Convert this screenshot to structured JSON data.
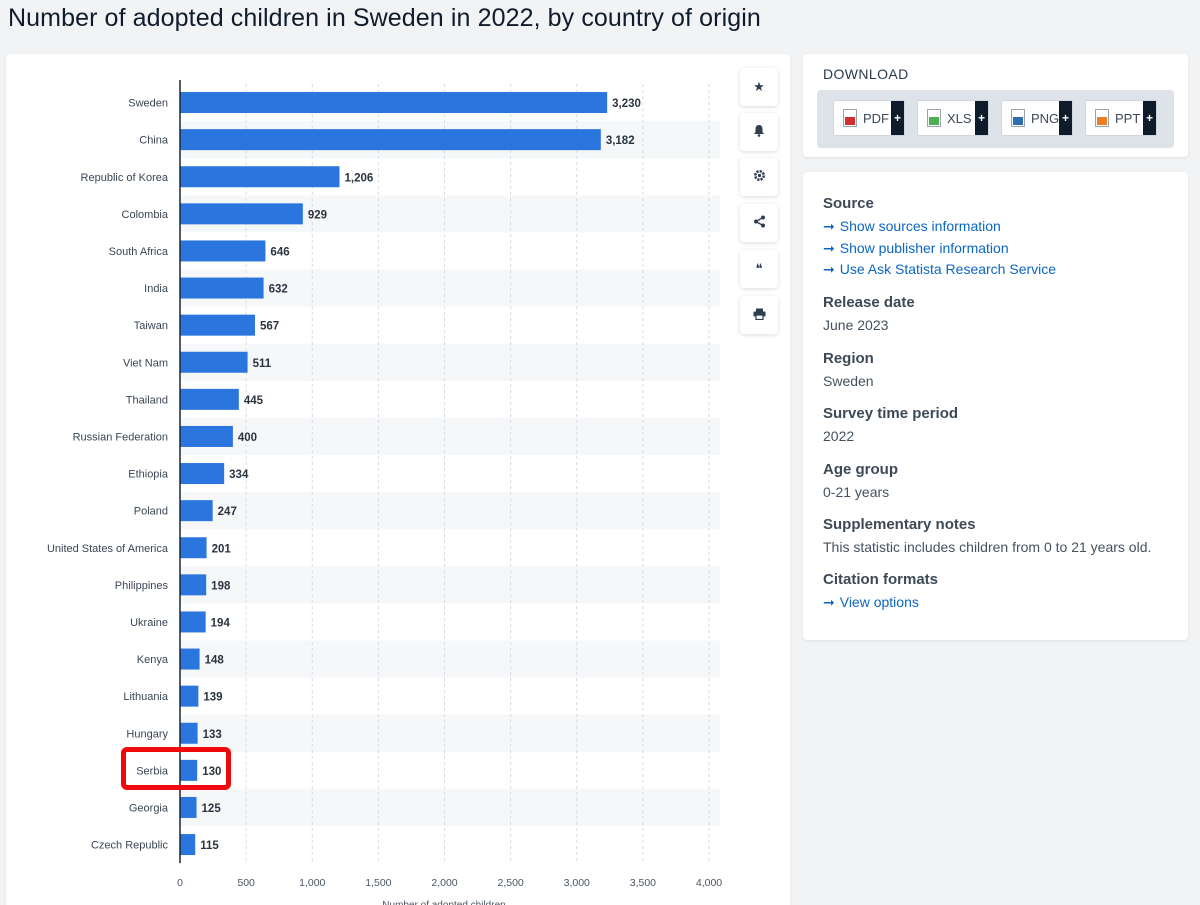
{
  "page": {
    "title": "Number of adopted children in Sweden in 2022, by country of origin"
  },
  "colors": {
    "bar": "#2b76de",
    "highlight": "#ee0a0a",
    "link": "#0a66c2"
  },
  "toolbar": {
    "icons": [
      "star-icon",
      "bell-icon",
      "gear-icon",
      "share-icon",
      "quote-icon",
      "print-icon"
    ],
    "glyphs": [
      "★",
      "🔔",
      "⚙",
      "⋖",
      "❝",
      "⎙"
    ]
  },
  "download": {
    "title": "DOWNLOAD",
    "buttons": [
      {
        "label": "PDF",
        "plus": "+",
        "icon": "pdf-file-icon",
        "color": "#d32f2f"
      },
      {
        "label": "XLS",
        "plus": "+",
        "icon": "xls-file-icon",
        "color": "#4caf50"
      },
      {
        "label": "PNG",
        "plus": "+",
        "icon": "png-file-icon",
        "color": "#2d6fb0"
      },
      {
        "label": "PPT",
        "plus": "+",
        "icon": "ppt-file-icon",
        "color": "#ef7d22"
      }
    ]
  },
  "info": {
    "source": {
      "heading": "Source",
      "arrow": "➞",
      "links": [
        "Show sources information",
        "Show publisher information",
        "Use Ask Statista Research Service"
      ]
    },
    "release": {
      "heading": "Release date",
      "value": "June 2023"
    },
    "region": {
      "heading": "Region",
      "value": "Sweden"
    },
    "survey": {
      "heading": "Survey time period",
      "value": "2022"
    },
    "age": {
      "heading": "Age group",
      "value": "0-21 years"
    },
    "notes": {
      "heading": "Supplementary notes",
      "value": "This statistic includes children from 0 to 21 years old."
    },
    "citation": {
      "heading": "Citation formats",
      "link": "View options"
    }
  },
  "chart_data": {
    "type": "bar",
    "orientation": "horizontal",
    "title": "Number of adopted children in Sweden in 2022, by country of origin",
    "categories": [
      "Sweden",
      "China",
      "Republic of Korea",
      "Colombia",
      "South Africa",
      "India",
      "Taiwan",
      "Viet Nam",
      "Thailand",
      "Russian Federation",
      "Ethiopia",
      "Poland",
      "United States of America",
      "Philippines",
      "Ukraine",
      "Kenya",
      "Lithuania",
      "Hungary",
      "Serbia",
      "Georgia",
      "Czech Republic"
    ],
    "values": [
      3230,
      3182,
      1206,
      929,
      646,
      632,
      567,
      511,
      445,
      400,
      334,
      247,
      201,
      198,
      194,
      148,
      139,
      133,
      130,
      125,
      115
    ],
    "value_labels": [
      "3,230",
      "3,182",
      "1,206",
      "929",
      "646",
      "632",
      "567",
      "511",
      "445",
      "400",
      "334",
      "247",
      "201",
      "198",
      "194",
      "148",
      "139",
      "133",
      "130",
      "125",
      "115"
    ],
    "xlabel": "Number of adopted children",
    "ylabel": "",
    "xlim": [
      0,
      4000
    ],
    "xticks": [
      0,
      500,
      1000,
      1500,
      2000,
      2500,
      3000,
      3500,
      4000
    ],
    "xtick_labels": [
      "0",
      "500",
      "1,000",
      "1,500",
      "2,000",
      "2,500",
      "3,000",
      "3,500",
      "4,000"
    ],
    "grid": true,
    "highlighted_category": "Serbia"
  }
}
